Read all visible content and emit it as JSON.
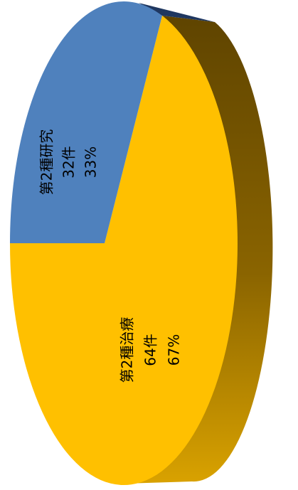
{
  "chart_data": {
    "type": "pie",
    "title": "",
    "slices": [
      {
        "name": "第2種研究",
        "count": "32件",
        "percent": "33%",
        "value": 32,
        "color": "#4f81bd",
        "side_color": "#1f3760"
      },
      {
        "name": "第2種治療",
        "count": "64件",
        "percent": "67%",
        "value": 64,
        "color": "#ffc000",
        "side_color": "#9c7300"
      }
    ]
  }
}
